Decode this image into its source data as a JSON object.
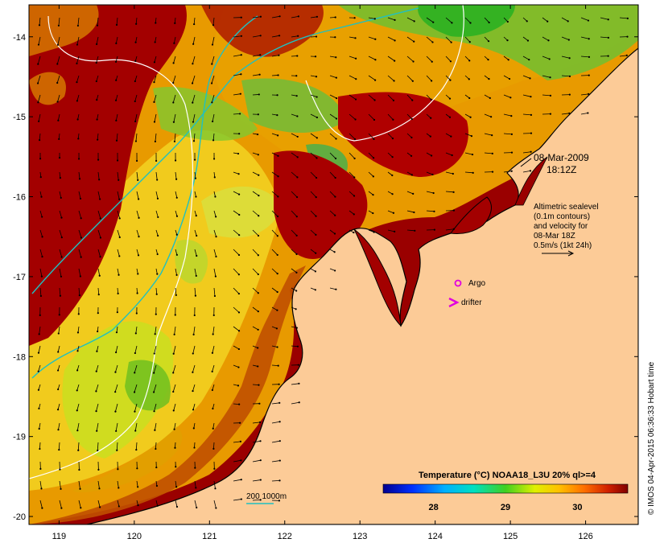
{
  "map": {
    "date_label": "08-Mar-2009",
    "time_label": "18:12Z",
    "altimetry_note": [
      "Altimetric sealevel",
      "(0.1m contours)",
      "and velocity for",
      "08-Mar 18Z",
      "0.5m/s (1kt 24h)"
    ],
    "legend_argo": "Argo",
    "legend_drifter": "drifter",
    "isobath_label": "200  1000m",
    "colorbar_title": "Temperature (°C) NOAA18_L3U 20% ql>=4",
    "colorbar_ticks": [
      "28",
      "29",
      "30"
    ],
    "credit": "© IMOS 04-Apr-2015 06:36:33 Hobart time",
    "x_ticks": [
      "119",
      "120",
      "121",
      "122",
      "123",
      "124",
      "125",
      "126"
    ],
    "y_ticks": [
      "-14",
      "-15",
      "-16",
      "-17",
      "-18",
      "-19",
      "-20"
    ]
  },
  "colors": {
    "land": "#fccb97",
    "sst_warm": "#a00000",
    "sst_mid": "#e89000",
    "sst_cool": "#f0e020",
    "sst_green": "#60c020",
    "isobath_200": "#20c0c0",
    "isobath_1000": "#ffffff",
    "argo": "#e000e0",
    "drifter": "#e000e0"
  },
  "chart_data": {
    "type": "heatmap",
    "xlim": [
      118.6,
      126.7
    ],
    "ylim": [
      -20.1,
      -13.6
    ],
    "x_ticks": [
      119,
      120,
      121,
      122,
      123,
      124,
      125,
      126
    ],
    "y_ticks": [
      -14,
      -15,
      -16,
      -17,
      -18,
      -19,
      -20
    ],
    "colorbar": {
      "min": 27.3,
      "max": 30.7,
      "ticks": [
        28,
        29,
        30
      ]
    },
    "argo_location": [
      124.3,
      -17.05
    ],
    "drifter_location": [
      124.2,
      -17.3
    ]
  }
}
